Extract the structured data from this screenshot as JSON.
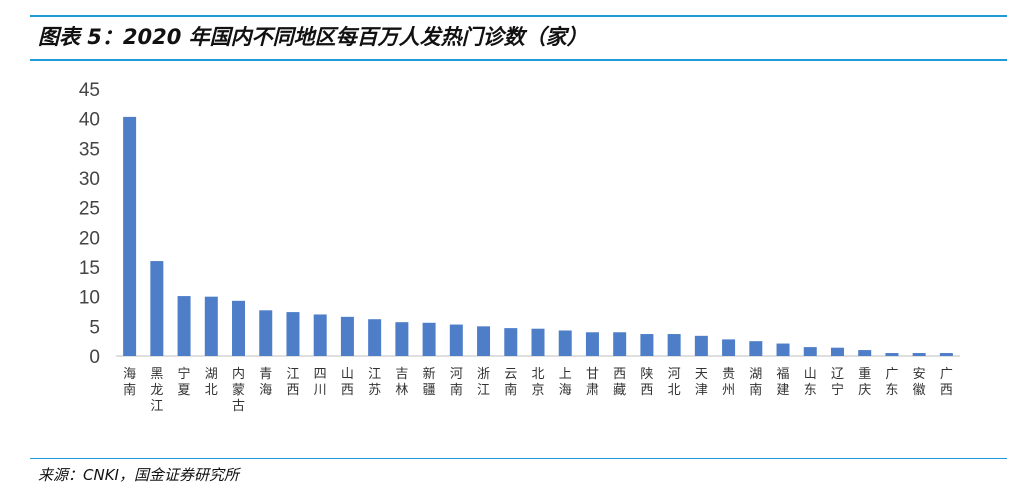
{
  "title": "图表 5：2020 年国内不同地区每百万人发热门诊数（家）",
  "source": "来源：CNKI，国金证券研究所",
  "chart_data": {
    "type": "bar",
    "categories": [
      "海南",
      "黑龙江",
      "宁夏",
      "湖北",
      "内蒙古",
      "青海",
      "江西",
      "四川",
      "山西",
      "江苏",
      "吉林",
      "新疆",
      "河南",
      "浙江",
      "云南",
      "北京",
      "上海",
      "甘肃",
      "西藏",
      "陕西",
      "河北",
      "天津",
      "贵州",
      "湖南",
      "福建",
      "山东",
      "辽宁",
      "重庆",
      "广东",
      "安徽",
      "广西"
    ],
    "values": [
      40.3,
      16.0,
      10.1,
      10.0,
      9.3,
      7.7,
      7.4,
      7.0,
      6.6,
      6.2,
      5.7,
      5.6,
      5.3,
      5.0,
      4.7,
      4.6,
      4.3,
      4.0,
      4.0,
      3.7,
      3.7,
      3.4,
      2.8,
      2.5,
      2.1,
      1.5,
      1.4,
      1.0,
      0.5,
      0.5,
      0.5
    ],
    "y_ticks": [
      "0",
      "5",
      "10",
      "15",
      "20",
      "25",
      "30",
      "35",
      "40",
      "45"
    ],
    "ylim": [
      0,
      45
    ],
    "bar_color": "#4f7ec8",
    "grid": false,
    "legend": "none"
  }
}
